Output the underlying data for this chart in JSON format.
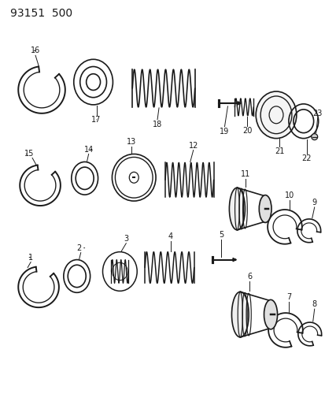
{
  "title": "93151  500",
  "background_color": "#ffffff",
  "line_color": "#1a1a1a",
  "fig_width": 4.14,
  "fig_height": 5.33,
  "dpi": 100
}
